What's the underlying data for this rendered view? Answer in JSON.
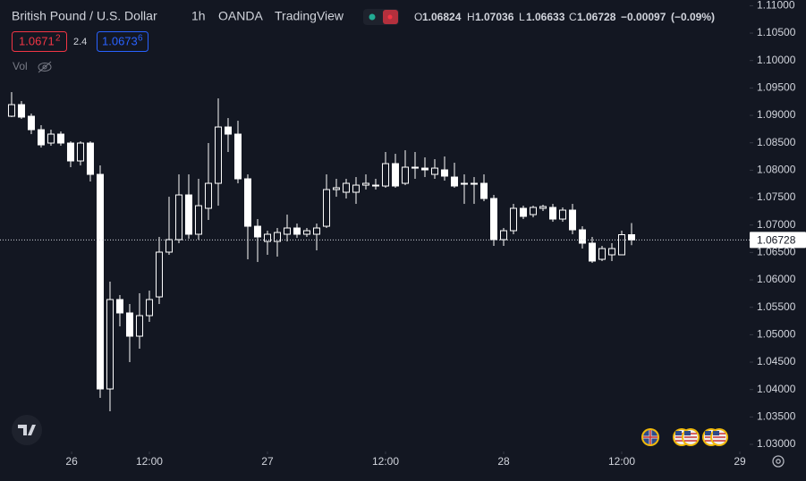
{
  "header": {
    "symbol": "British Pound / U.S. Dollar",
    "interval": "1h",
    "source": "OANDA",
    "platform": "TradingView",
    "readout_labels": {
      "open": "O",
      "high": "H",
      "low": "L",
      "close": "C"
    },
    "change": "−0.00097",
    "change_pct": "(−0.09%)",
    "sell": {
      "main": "1.0671",
      "pip": "2"
    },
    "spread": "2.4",
    "buy": {
      "main": "1.0673",
      "pip": "6"
    },
    "volume_label": "Vol"
  },
  "chart_data": {
    "type": "candlestick",
    "open": [
      1.08984,
      1.09196,
      1.08984,
      1.08739,
      1.08495,
      1.08658,
      1.08495,
      1.08169,
      1.08495,
      1.07924,
      1.04011,
      1.05641,
      1.05397,
      1.04973,
      1.05348,
      1.0569,
      1.06506,
      1.06734,
      1.07549,
      1.06832,
      1.07305,
      1.07761,
      1.08788,
      1.08658,
      1.07843,
      1.06978,
      1.06701,
      1.06701,
      1.06832,
      1.06946,
      1.06832,
      1.06832,
      1.06978,
      1.07647,
      1.07598,
      1.07598,
      1.07728,
      1.07728,
      1.07712,
      1.0812,
      1.07761,
      1.08055,
      1.08038,
      1.07924,
      1.08006,
      1.07875,
      1.07745,
      1.07761,
      1.07761,
      1.07484,
      1.06734,
      1.06897,
      1.07305,
      1.0719,
      1.07305,
      1.07321,
      1.07109,
      1.07272,
      1.06913,
      1.06669,
      1.06375,
      1.06457,
      1.06457,
      1.06824
    ],
    "high": [
      1.09424,
      1.09261,
      1.09033,
      1.08821,
      1.08739,
      1.08707,
      1.08527,
      1.08527,
      1.08527,
      1.08087,
      1.05968,
      1.05723,
      1.0556,
      1.05756,
      1.05804,
      1.06783,
      1.07516,
      1.07924,
      1.07924,
      1.07843,
      1.08495,
      1.0931,
      1.08951,
      1.08902,
      1.07924,
      1.07109,
      1.06897,
      1.06946,
      1.0719,
      1.07027,
      1.06946,
      1.07027,
      1.07924,
      1.07843,
      1.07843,
      1.07875,
      1.07924,
      1.07843,
      1.08332,
      1.08299,
      1.08364,
      1.08332,
      1.08234,
      1.08201,
      1.0825,
      1.08136,
      1.07924,
      1.07875,
      1.07924,
      1.07549,
      1.06946,
      1.07386,
      1.07353,
      1.07353,
      1.0737,
      1.07386,
      1.07321,
      1.07386,
      1.06978,
      1.06783,
      1.0662,
      1.06669,
      1.06897,
      1.07036
    ],
    "low": [
      1.08968,
      1.08935,
      1.08658,
      1.08413,
      1.08446,
      1.08446,
      1.08055,
      1.08087,
      1.07794,
      1.03848,
      1.03603,
      1.05152,
      1.045,
      1.04745,
      1.05234,
      1.0556,
      1.06457,
      1.06669,
      1.0675,
      1.06734,
      1.07093,
      1.07353,
      1.08332,
      1.07761,
      1.06375,
      1.06326,
      1.06457,
      1.06424,
      1.06701,
      1.06766,
      1.06783,
      1.06538,
      1.06946,
      1.07516,
      1.07484,
      1.07386,
      1.07647,
      1.07647,
      1.0768,
      1.0768,
      1.07728,
      1.07843,
      1.07875,
      1.07843,
      1.0781,
      1.0768,
      1.07386,
      1.07386,
      1.07435,
      1.0662,
      1.0662,
      1.06832,
      1.07109,
      1.07141,
      1.07256,
      1.0706,
      1.0706,
      1.06832,
      1.06571,
      1.0631,
      1.06343,
      1.06343,
      1.06457,
      1.06633
    ],
    "close": [
      1.09196,
      1.08968,
      1.08739,
      1.08462,
      1.08658,
      1.08495,
      1.08169,
      1.08495,
      1.07924,
      1.04011,
      1.05641,
      1.05397,
      1.04973,
      1.05348,
      1.05641,
      1.06506,
      1.06734,
      1.07549,
      1.06832,
      1.07353,
      1.07761,
      1.08788,
      1.08658,
      1.07843,
      1.06978,
      1.06783,
      1.06832,
      1.06864,
      1.06946,
      1.06832,
      1.06897,
      1.06946,
      1.07647,
      1.0768,
      1.07761,
      1.07728,
      1.07761,
      1.07712,
      1.0812,
      1.07712,
      1.08055,
      1.08038,
      1.08006,
      1.08038,
      1.07892,
      1.07712,
      1.07761,
      1.07745,
      1.07484,
      1.06734,
      1.06897,
      1.07305,
      1.07158,
      1.07321,
      1.07337,
      1.07109,
      1.07272,
      1.06913,
      1.06669,
      1.06343,
      1.06571,
      1.06571,
      1.06824,
      1.06728
    ],
    "up_color": "#131722",
    "down_color": "#ffffff",
    "wick_color": "#ffffff",
    "ylim": [
      1.0287,
      1.11104
    ],
    "yticks": [
      {
        "value": 1.03,
        "label": "1.03000"
      },
      {
        "value": 1.035,
        "label": "1.03500"
      },
      {
        "value": 1.04,
        "label": "1.04000"
      },
      {
        "value": 1.045,
        "label": "1.04500"
      },
      {
        "value": 1.05,
        "label": "1.05000"
      },
      {
        "value": 1.055,
        "label": "1.05500"
      },
      {
        "value": 1.06,
        "label": "1.06000"
      },
      {
        "value": 1.065,
        "label": "1.06500"
      },
      {
        "value": 1.07,
        "label": "1.07000"
      },
      {
        "value": 1.075,
        "label": "1.07500"
      },
      {
        "value": 1.08,
        "label": "1.08000"
      },
      {
        "value": 1.085,
        "label": "1.08500"
      },
      {
        "value": 1.09,
        "label": "1.09000"
      },
      {
        "value": 1.095,
        "label": "1.09500"
      },
      {
        "value": 1.1,
        "label": "1.10000"
      },
      {
        "value": 1.105,
        "label": "1.10500"
      },
      {
        "value": 1.11,
        "label": "1.11000"
      }
    ],
    "xlim": [
      -1.18,
      75
    ],
    "xticks": [
      {
        "value": 6.1,
        "label": "26"
      },
      {
        "value": 14,
        "label": "12:00"
      },
      {
        "value": 26,
        "label": "27"
      },
      {
        "value": 38,
        "label": "12:00"
      },
      {
        "value": 50,
        "label": "28"
      },
      {
        "value": 62,
        "label": "12:00"
      },
      {
        "value": 74,
        "label": "29"
      }
    ],
    "grid": false
  }
}
